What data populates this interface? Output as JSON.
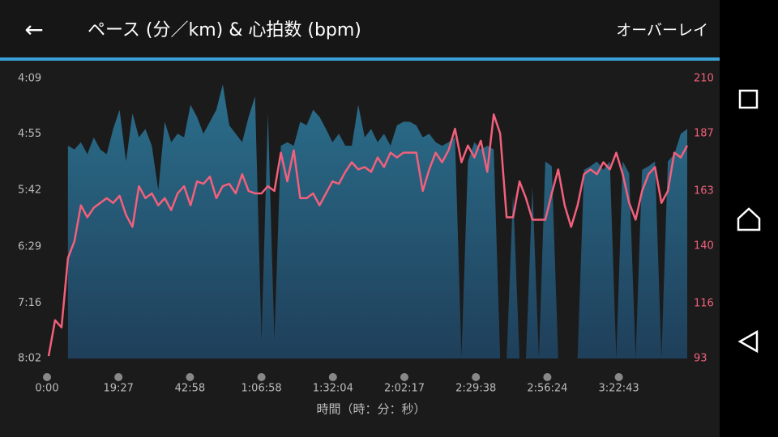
{
  "header": {
    "back": "←",
    "title": "ペース (分／km) & 心拍数 (bpm)",
    "action": "オーバーレイ"
  },
  "chart_data": {
    "type": "area",
    "x_label": "時間（時：分：秒）",
    "xtick_labels": [
      "0:00",
      "19:27",
      "42:58",
      "1:06:58",
      "1:32:04",
      "2:02:17",
      "2:29:38",
      "2:56:24",
      "3:22:43"
    ],
    "ylim": [
      482,
      249
    ],
    "yticks": [
      {
        "value": 249,
        "label": "4:09"
      },
      {
        "value": 295,
        "label": "4:55"
      },
      {
        "value": 342,
        "label": "5:42"
      },
      {
        "value": 389,
        "label": "6:29"
      },
      {
        "value": 436,
        "label": "7:16"
      },
      {
        "value": 482,
        "label": "8:02"
      }
    ],
    "y2lim": [
      93,
      210
    ],
    "y2ticks": [
      93,
      116,
      140,
      163,
      187,
      210
    ],
    "series": [
      {
        "name": "ペース",
        "type": "area",
        "color": "#2b6f8c",
        "values": [
          null,
          null,
          null,
          305,
          308,
          302,
          312,
          298,
          308,
          312,
          291,
          275,
          318,
          278,
          298,
          291,
          305,
          342,
          285,
          302,
          295,
          298,
          271,
          281,
          295,
          285,
          275,
          254,
          288,
          295,
          302,
          281,
          264,
          467,
          278,
          467,
          305,
          302,
          305,
          285,
          288,
          275,
          281,
          291,
          302,
          295,
          305,
          305,
          271,
          298,
          291,
          302,
          295,
          305,
          288,
          285,
          285,
          288,
          298,
          295,
          302,
          305,
          302,
          298,
          481,
          318,
          302,
          308,
          305,
          308,
          482,
          482,
          345,
          482,
          482,
          339,
          482,
          318,
          322,
          482,
          482,
          482,
          482,
          325,
          322,
          318,
          325,
          318,
          482,
          318,
          328,
          482,
          325,
          322,
          318,
          482,
          318,
          312,
          295,
          291
        ]
      },
      {
        "name": "心拍数",
        "type": "line",
        "axis": "y2",
        "color": "#f2607c",
        "values": [
          94,
          109,
          106,
          135,
          142,
          157,
          152,
          156,
          158,
          160,
          158,
          161,
          153,
          148,
          165,
          160,
          162,
          157,
          160,
          155,
          162,
          165,
          157,
          167,
          166,
          169,
          160,
          165,
          166,
          162,
          170,
          163,
          162,
          162,
          165,
          163,
          179,
          167,
          180,
          160,
          160,
          162,
          157,
          162,
          167,
          166,
          171,
          175,
          172,
          173,
          171,
          177,
          173,
          179,
          177,
          179,
          179,
          179,
          163,
          172,
          179,
          175,
          180,
          189,
          175,
          182,
          177,
          184,
          171,
          195,
          187,
          152,
          152,
          167,
          160,
          151,
          151,
          151,
          162,
          172,
          157,
          148,
          157,
          170,
          172,
          170,
          175,
          172,
          179,
          170,
          158,
          151,
          163,
          170,
          173,
          158,
          163,
          179,
          177,
          182
        ]
      }
    ]
  }
}
